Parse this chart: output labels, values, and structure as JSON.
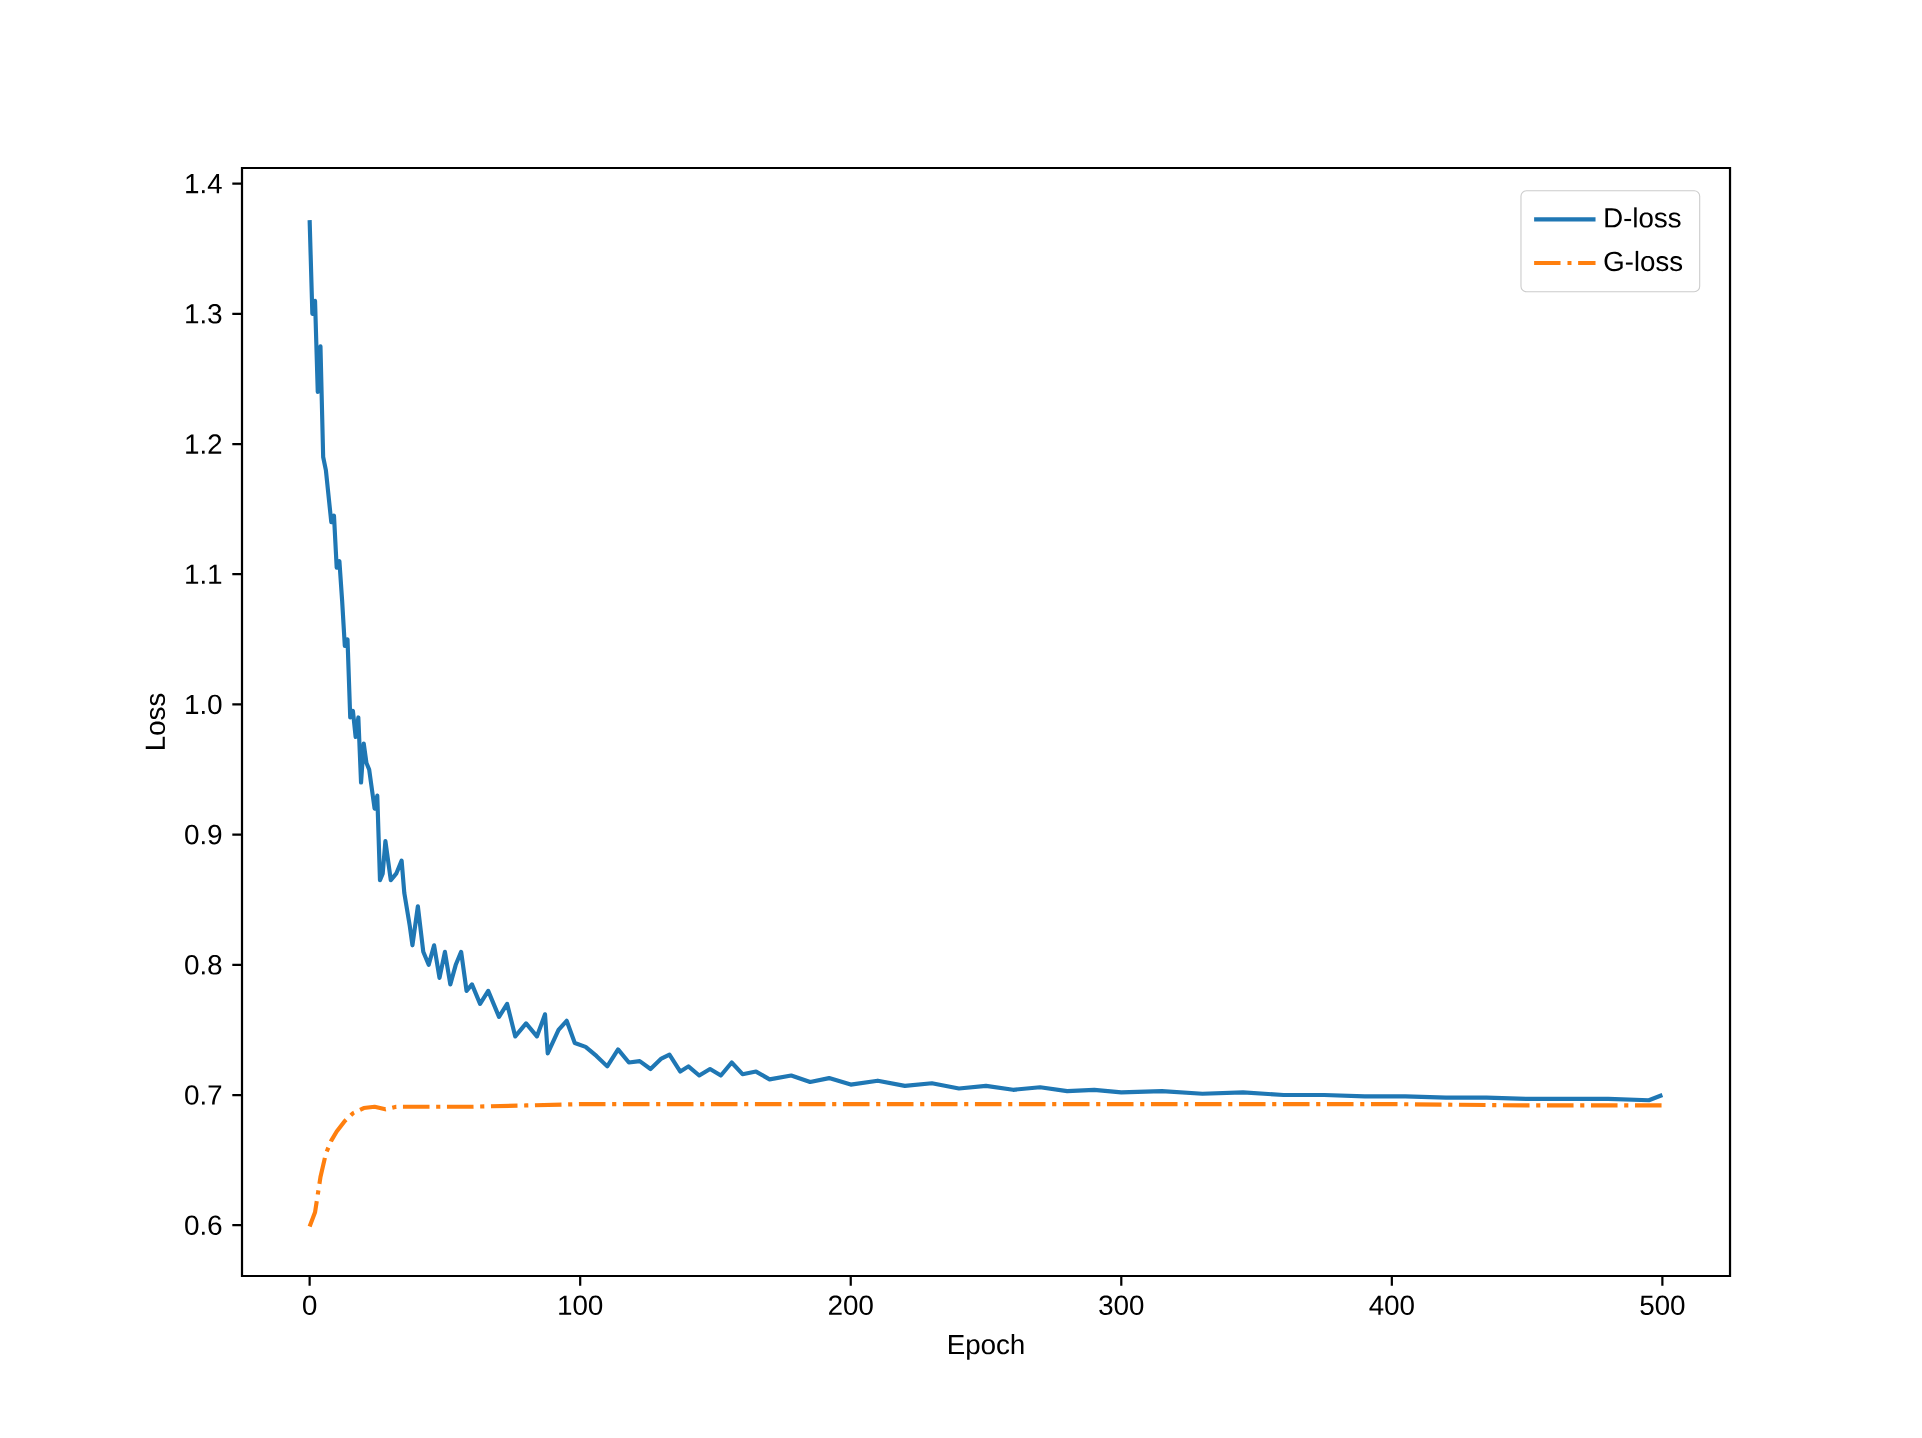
{
  "chart_data": {
    "type": "line",
    "xlabel": "Epoch",
    "ylabel": "Loss",
    "xlim": [
      -25,
      525
    ],
    "ylim": [
      0.561,
      1.412
    ],
    "xticks": [
      0,
      100,
      200,
      300,
      400,
      500
    ],
    "yticks": [
      0.6,
      0.7,
      0.8,
      0.9,
      {
        "value": 1.0,
        "label": "1.0"
      },
      1.1,
      1.2,
      1.3,
      1.4
    ],
    "legend": "top right",
    "grid": false,
    "marker": "none",
    "series": [
      {
        "name": "D-loss",
        "color": "#1f77b4",
        "line_style": "solid",
        "x": [
          0,
          1,
          2,
          3,
          4,
          5,
          6,
          8,
          9,
          10,
          11,
          12,
          13,
          14,
          15,
          16,
          17,
          18,
          19,
          20,
          21,
          22,
          24,
          25,
          26,
          27,
          28,
          30,
          32,
          34,
          35,
          37,
          38,
          40,
          42,
          44,
          46,
          48,
          50,
          52,
          54,
          56,
          58,
          60,
          63,
          66,
          70,
          73,
          76,
          80,
          84,
          87,
          88,
          92,
          95,
          98,
          102,
          106,
          110,
          114,
          118,
          122,
          126,
          130,
          133,
          137,
          140,
          144,
          148,
          152,
          156,
          160,
          165,
          170,
          178,
          185,
          192,
          200,
          210,
          220,
          230,
          240,
          250,
          260,
          270,
          280,
          290,
          300,
          315,
          330,
          345,
          360,
          375,
          390,
          405,
          420,
          435,
          450,
          465,
          480,
          495,
          500
        ],
        "values": [
          1.372,
          1.3,
          1.31,
          1.24,
          1.275,
          1.19,
          1.18,
          1.14,
          1.145,
          1.105,
          1.11,
          1.08,
          1.045,
          1.05,
          0.99,
          0.995,
          0.975,
          0.99,
          0.94,
          0.97,
          0.955,
          0.95,
          0.92,
          0.93,
          0.865,
          0.87,
          0.895,
          0.865,
          0.87,
          0.88,
          0.855,
          0.83,
          0.815,
          0.845,
          0.81,
          0.8,
          0.815,
          0.79,
          0.81,
          0.785,
          0.8,
          0.81,
          0.78,
          0.785,
          0.77,
          0.78,
          0.76,
          0.77,
          0.745,
          0.755,
          0.745,
          0.762,
          0.732,
          0.75,
          0.757,
          0.74,
          0.737,
          0.73,
          0.722,
          0.735,
          0.725,
          0.726,
          0.72,
          0.728,
          0.731,
          0.718,
          0.722,
          0.715,
          0.72,
          0.715,
          0.725,
          0.716,
          0.718,
          0.712,
          0.715,
          0.71,
          0.713,
          0.708,
          0.711,
          0.707,
          0.709,
          0.705,
          0.707,
          0.704,
          0.706,
          0.703,
          0.704,
          0.702,
          0.703,
          0.701,
          0.702,
          0.7,
          0.7,
          0.699,
          0.699,
          0.698,
          0.698,
          0.697,
          0.697,
          0.697,
          0.696,
          0.7
        ]
      },
      {
        "name": "G-loss",
        "color": "#ff7f0e",
        "line_style": "dashdot",
        "x": [
          0,
          2,
          4,
          6,
          8,
          10,
          13,
          16,
          18,
          20,
          24,
          28,
          32,
          40,
          50,
          60,
          80,
          100,
          150,
          200,
          250,
          300,
          350,
          400,
          450,
          500
        ],
        "values": [
          0.599,
          0.61,
          0.637,
          0.655,
          0.665,
          0.672,
          0.68,
          0.686,
          0.688,
          0.69,
          0.691,
          0.689,
          0.691,
          0.691,
          0.691,
          0.691,
          0.692,
          0.693,
          0.693,
          0.693,
          0.693,
          0.693,
          0.693,
          0.693,
          0.692,
          0.692
        ]
      }
    ]
  }
}
